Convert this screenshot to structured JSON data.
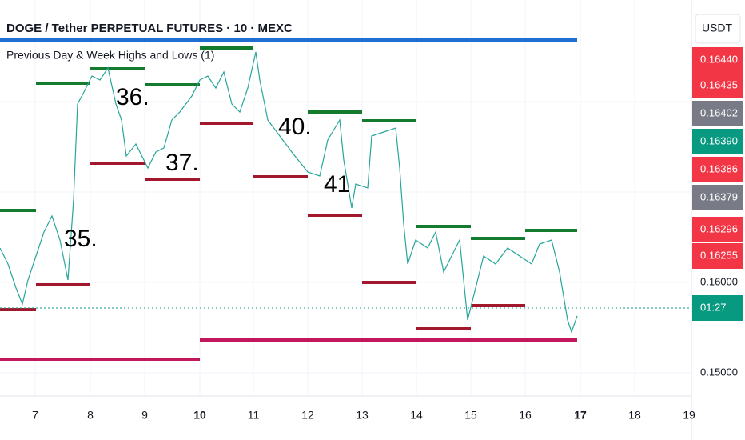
{
  "header": {
    "title": "DOGE / Tether PERPETUAL FUTURES · 10 · MEXC",
    "indicator": "Previous Day & Week Highs and Lows (1)"
  },
  "price_axis": {
    "currency": "USDT",
    "labels": [
      "0.16440",
      "0.16435",
      "0.16402",
      "0.16390",
      "0.16386",
      "0.16379",
      "0.16296",
      "0.16255",
      "0.16000",
      "01:27",
      "0.15000"
    ]
  },
  "time_axis": {
    "labels": [
      "7",
      "8",
      "9",
      "10",
      "11",
      "12",
      "13",
      "14",
      "15",
      "16",
      "17",
      "18",
      "19"
    ]
  },
  "annotations": [
    "35.",
    "36.",
    "37.",
    "40.",
    "41"
  ]
}
